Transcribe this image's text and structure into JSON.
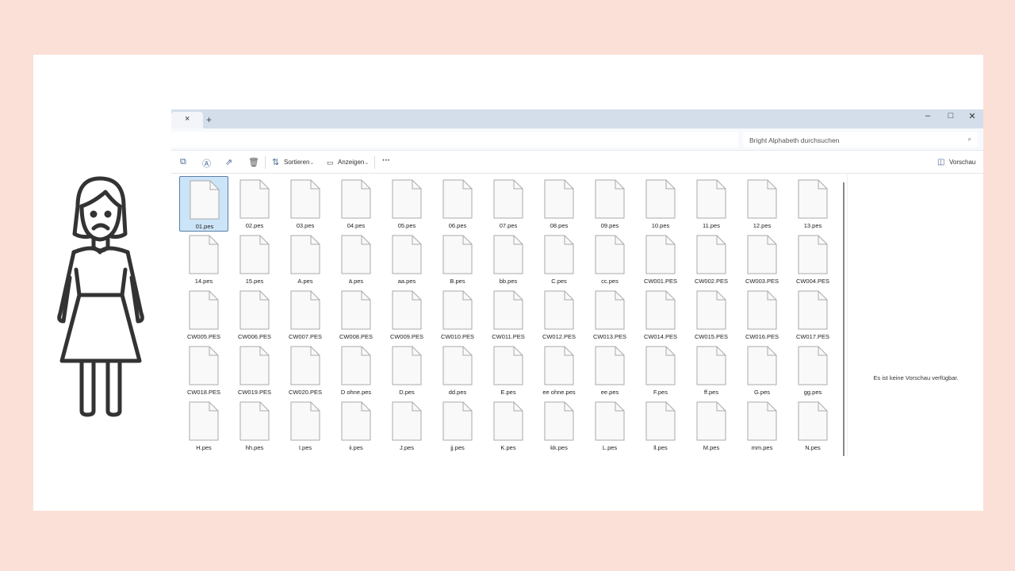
{
  "window": {
    "search_placeholder": "Bright Alphabeth durchsuchen",
    "tab_close": "×",
    "new_tab": "+",
    "minimize": "–",
    "maximize": "□",
    "close": "✕"
  },
  "toolbar": {
    "sort_label": "Sortieren",
    "view_label": "Anzeigen",
    "more_label": "···",
    "preview_label": "Vorschau"
  },
  "preview": {
    "empty_text": "Es ist keine Vorschau verfügbar."
  },
  "files": [
    "01.pes",
    "02.pes",
    "03.pes",
    "04.pes",
    "05.pes",
    "06.pes",
    "07.pes",
    "08.pes",
    "09.pes",
    "10.pes",
    "11.pes",
    "12.pes",
    "13.pes",
    "14.pes",
    "15.pes",
    "A.pes",
    "ä.pes",
    "aa.pes",
    "B.pes",
    "bb.pes",
    "C.pes",
    "cc.pes",
    "CW001.PES",
    "CW002.PES",
    "CW003.PES",
    "CW004.PES",
    "CW005.PES",
    "CW006.PES",
    "CW007.PES",
    "CW008.PES",
    "CW009.PES",
    "CW010.PES",
    "CW011.PES",
    "CW012.PES",
    "CW013.PES",
    "CW014.PES",
    "CW015.PES",
    "CW016.PES",
    "CW017.PES",
    "CW018.PES",
    "CW019.PES",
    "CW020.PES",
    "D ohne.pes",
    "D.pes",
    "dd.pes",
    "E.pes",
    "ee ohne.pes",
    "ee.pes",
    "F.pes",
    "ff.pes",
    "G.pes",
    "gg.pes",
    "H.pes",
    "hh.pes",
    "I.pes",
    "ii.pes",
    "J.pes",
    "jj.pes",
    "K.pes",
    "kk.pes",
    "L.pes",
    "ll.pes",
    "M.pes",
    "mm.pes",
    "N.pes"
  ],
  "selected_file": "01.pes"
}
